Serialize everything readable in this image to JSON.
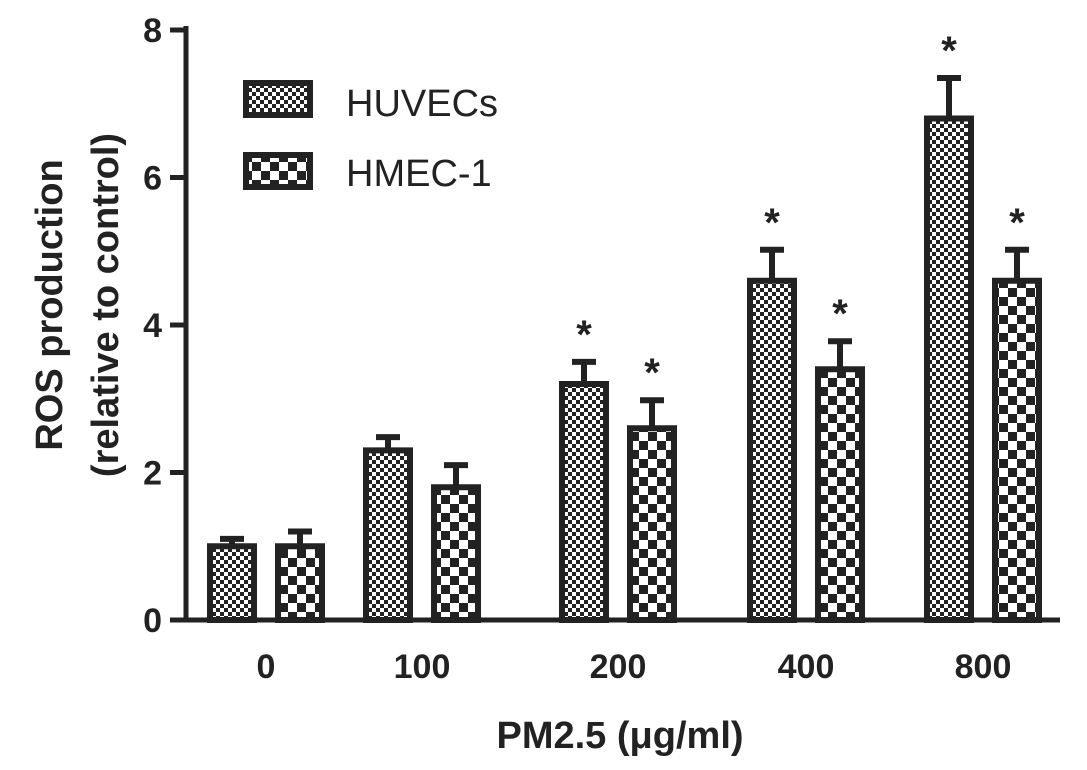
{
  "chart_data": {
    "type": "bar",
    "title": "",
    "xlabel": "PM2.5 (μg/ml)",
    "ylabel_line1": "ROS production",
    "ylabel_line2": "(relative to control)",
    "ylim": [
      0,
      8
    ],
    "yticks": [
      0,
      2,
      4,
      6,
      8
    ],
    "categories": [
      "0",
      "100",
      "200",
      "400",
      "800"
    ],
    "series": [
      {
        "name": "HUVECs",
        "pattern": "fine-checker",
        "values": [
          1.0,
          2.3,
          3.2,
          4.6,
          6.8
        ],
        "errors": [
          0.1,
          0.18,
          0.3,
          0.42,
          0.55
        ],
        "significant": [
          false,
          false,
          true,
          true,
          true
        ]
      },
      {
        "name": "HMEC-1",
        "pattern": "coarse-checker",
        "values": [
          1.0,
          1.8,
          2.6,
          3.4,
          4.6
        ],
        "errors": [
          0.2,
          0.3,
          0.38,
          0.38,
          0.42
        ],
        "significant": [
          false,
          false,
          true,
          true,
          true
        ]
      }
    ],
    "significance_marker": "*",
    "legend_position": "top-left",
    "grid": false,
    "colors": {
      "stroke": "#222222",
      "fill_dark": "#222222",
      "fill_light": "#ffffff"
    }
  }
}
